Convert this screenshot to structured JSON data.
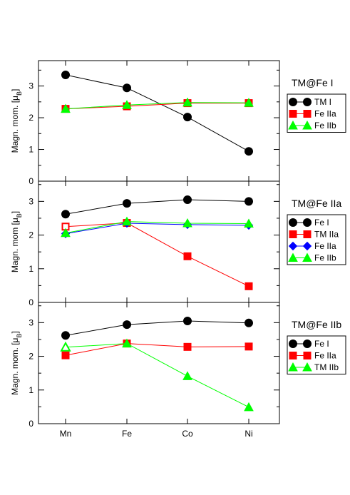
{
  "chart_data": [
    {
      "type": "line",
      "title": "TM@Fe I",
      "ylabel": "Magn. mom. [μB]",
      "categories": [
        "Mn",
        "Fe",
        "Co",
        "Ni"
      ],
      "ylim": [
        0,
        3.8
      ],
      "yticks": [
        0,
        1,
        2,
        3
      ],
      "series": [
        {
          "name": "TM I",
          "values": [
            3.35,
            2.94,
            2.02,
            0.94
          ],
          "color": "#000000",
          "marker": "circle",
          "open": []
        },
        {
          "name": "Fe IIa",
          "values": [
            2.28,
            2.36,
            2.46,
            2.46
          ],
          "color": "#ff0000",
          "marker": "square",
          "open": []
        },
        {
          "name": "Fe IIb",
          "values": [
            2.28,
            2.4,
            2.48,
            2.47
          ],
          "color": "#00ff00",
          "marker": "triangle",
          "open": []
        }
      ]
    },
    {
      "type": "line",
      "title": "TM@Fe IIa",
      "ylabel": "Magn. mom [μB]",
      "categories": [
        "Mn",
        "Fe",
        "Co",
        "Ni"
      ],
      "ylim": [
        0,
        3.6
      ],
      "yticks": [
        0,
        1,
        2,
        3
      ],
      "series": [
        {
          "name": "Fe I",
          "values": [
            2.62,
            2.94,
            3.05,
            3.0
          ],
          "color": "#000000",
          "marker": "circle",
          "open": []
        },
        {
          "name": "TM IIa",
          "values": [
            2.25,
            2.36,
            1.37,
            0.48
          ],
          "color": "#ff0000",
          "marker": "square",
          "open": [
            0
          ]
        },
        {
          "name": "Fe IIa",
          "values": [
            2.04,
            2.35,
            2.31,
            2.29
          ],
          "color": "#0000ff",
          "marker": "diamond",
          "open": []
        },
        {
          "name": "Fe IIb",
          "values": [
            2.06,
            2.4,
            2.35,
            2.34
          ],
          "color": "#00ff00",
          "marker": "triangle",
          "open": []
        }
      ]
    },
    {
      "type": "line",
      "title": "TM@Fe IIb",
      "ylabel": "Magn. mom. [μB]",
      "categories": [
        "Mn",
        "Fe",
        "Co",
        "Ni"
      ],
      "ylim": [
        0,
        3.6
      ],
      "yticks": [
        0,
        1,
        2,
        3
      ],
      "series": [
        {
          "name": "Fe I",
          "values": [
            2.62,
            2.94,
            3.05,
            2.99
          ],
          "color": "#000000",
          "marker": "circle",
          "open": []
        },
        {
          "name": "Fe IIa",
          "values": [
            2.03,
            2.38,
            2.28,
            2.29
          ],
          "color": "#ff0000",
          "marker": "square",
          "open": []
        },
        {
          "name": "TM IIb",
          "values": [
            2.27,
            2.38,
            1.41,
            0.49
          ],
          "color": "#00ff00",
          "marker": "triangle",
          "open": [
            0
          ]
        }
      ]
    }
  ]
}
